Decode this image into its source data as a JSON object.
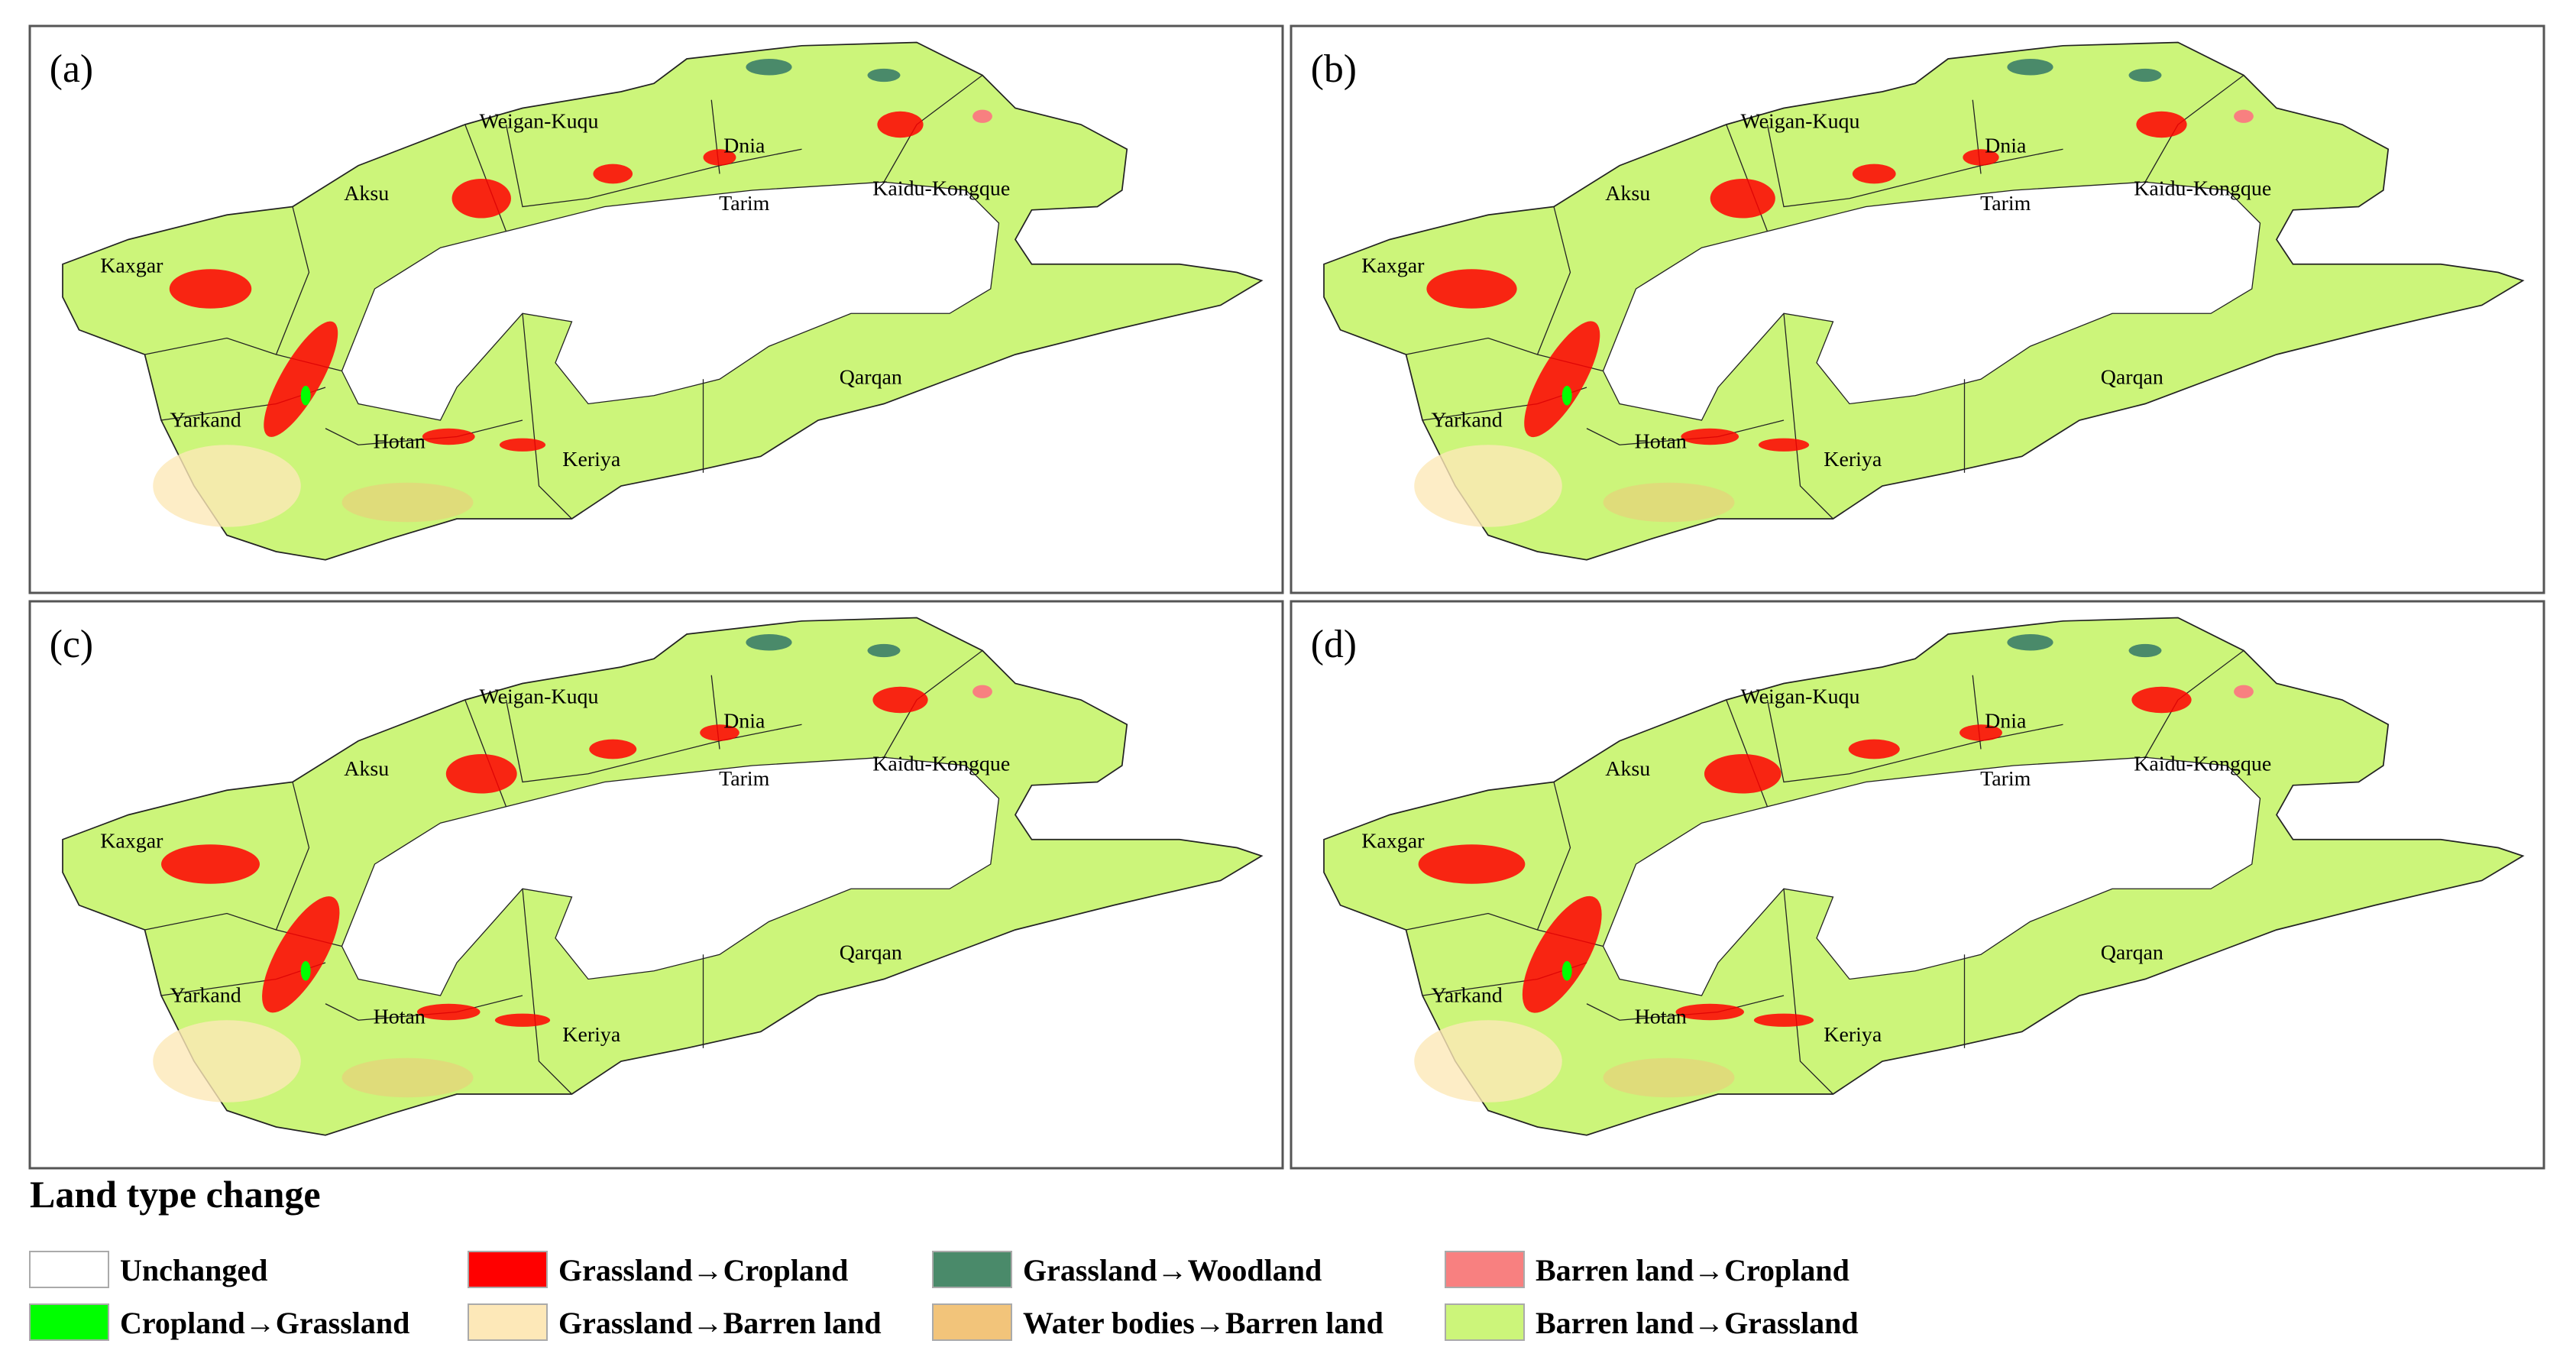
{
  "panels": [
    {
      "label": "(a)"
    },
    {
      "label": "(b)"
    },
    {
      "label": "(c)"
    },
    {
      "label": "(d)"
    }
  ],
  "regions": [
    "Weigan-Kuqu",
    "Dnia",
    "Kaidu-Kongque",
    "Aksu",
    "Tarim",
    "Kaxgar",
    "Yarkand",
    "Hotan",
    "Keriya",
    "Qarqan"
  ],
  "legend": {
    "title": "Land type change",
    "items": [
      {
        "name": "Unchanged",
        "color": "#ffffff"
      },
      {
        "name": "Grassland→Cropland",
        "color": "#ff0000"
      },
      {
        "name": "Grassland→Woodland",
        "color": "#4a8a6a"
      },
      {
        "name": "Barren land→Cropland",
        "color": "#f88080"
      },
      {
        "name": "Cropland→Grassland",
        "color": "#00ff00"
      },
      {
        "name": "Grassland→Barren land",
        "color": "#fde8b8"
      },
      {
        "name": "Water bodies→Barren land",
        "color": "#f2c47a"
      },
      {
        "name": "Barren land→Grassland",
        "color": "#ccf57a"
      }
    ]
  }
}
